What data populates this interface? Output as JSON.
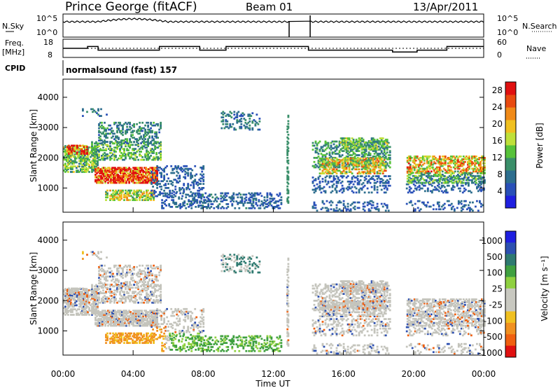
{
  "header": {
    "station": "Prince George (fitACF)",
    "beam": "Beam 01",
    "date": "13/Apr/2011"
  },
  "top_panels": {
    "nsky_label": "N.Sky",
    "nsky_ticks": [
      "10^5",
      "10^0"
    ],
    "nsearch_label": "N.Search",
    "nsearch_ticks": [
      "10^5",
      "10^0"
    ],
    "freq_label_line1": "Freq.",
    "freq_label_line2": "[MHz]",
    "freq_ticks": [
      "18",
      "8"
    ],
    "nave_label": "Nave",
    "nave_ticks": [
      "60",
      "0"
    ],
    "cpid_label": "CPID",
    "cpid_value": "normalsound (fast) 157"
  },
  "colors": {
    "power_scale": [
      "#1f1fe0",
      "#2950b8",
      "#2d6e8e",
      "#3a8f6a",
      "#57c23a",
      "#bfe03a",
      "#f0c020",
      "#f08a18",
      "#e84a10",
      "#e01010"
    ],
    "velocity_scale": [
      "#1f1fe0",
      "#2d50b0",
      "#2e7a70",
      "#3fa040",
      "#8fd040",
      "#c8c8c0",
      "#c8c8c0",
      "#f0c020",
      "#f09020",
      "#f06010",
      "#e01010"
    ],
    "ground_scatter": "#c4c4bc"
  },
  "chart_data": [
    {
      "type": "heatmap",
      "name": "power",
      "ylabel": "Slant Range [km]",
      "yticks": [
        1000,
        2000,
        3000,
        4000
      ],
      "xlabel": "",
      "colorbar_label": "Power [dB]",
      "colorbar_ticks": [
        4,
        8,
        12,
        16,
        20,
        24,
        28
      ],
      "ylim": [
        200,
        4600
      ],
      "clim": [
        0,
        30
      ]
    },
    {
      "type": "heatmap",
      "name": "velocity",
      "ylabel": "Slant Range [km]",
      "yticks": [
        1000,
        2000,
        3000,
        4000
      ],
      "xlabel": "Time UT",
      "xticks": [
        "00:00",
        "04:00",
        "08:00",
        "12:00",
        "16:00",
        "20:00",
        "00:00"
      ],
      "colorbar_label": "Velocity [m s⁻¹]",
      "colorbar_ticks": [
        "1000",
        "500",
        "100",
        "25",
        "-25",
        "-100",
        "-500",
        "-1000"
      ],
      "ylim": [
        200,
        4600
      ]
    },
    {
      "type": "line",
      "name": "frequency",
      "x_hours": [
        0,
        1.0,
        1.4,
        2.0,
        3.5,
        5.5,
        7.8,
        9.3,
        12.8,
        14.0,
        16.2,
        17.8,
        18.8,
        19.7,
        20.2,
        21.9,
        24
      ],
      "values_mhz": [
        13,
        13,
        14,
        12,
        12,
        14,
        12,
        14,
        14,
        12,
        12,
        12,
        11,
        11,
        12,
        14,
        14
      ]
    }
  ]
}
